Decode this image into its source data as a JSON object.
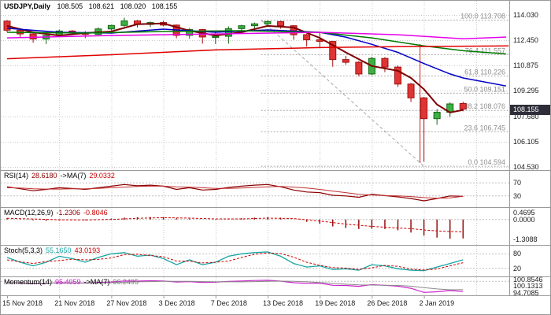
{
  "header": {
    "symbol_title": "USDJPY,Daily",
    "open": "108.505",
    "high": "108.621",
    "low": "108.020",
    "close": "108.155"
  },
  "price_axis": {
    "ticks": [
      "114.030",
      "112.450",
      "110.875",
      "109.295",
      "107.680",
      "106.105",
      "104.530"
    ],
    "tick_values": [
      114.03,
      112.45,
      110.875,
      109.295,
      107.68,
      106.105,
      104.53
    ],
    "current_price": "108.155",
    "current_price_value": 108.155
  },
  "time_axis": {
    "labels": [
      "15 Nov 2018",
      "21 Nov 2018",
      "27 Nov 2018",
      "3 Dec 2018",
      "7 Dec 2018",
      "13 Dec 2018",
      "19 Dec 2018",
      "26 Dec 2018",
      "2 Jan 2019"
    ],
    "label_indices": [
      0,
      4,
      8,
      12,
      16,
      20,
      24,
      28,
      32
    ]
  },
  "colors": {
    "background": "#FFFFFF",
    "grid": "#C9C9C9",
    "separator": "#9A9A9A",
    "candle_up_fill": "#3CB043",
    "candle_up_border": "#156615",
    "candle_down_fill": "#E03535",
    "candle_down_border": "#A01010",
    "badge_bg": "#2E2E3A",
    "badge_text": "#FFFFFF",
    "fib_line": "#A8A8A8",
    "fib_text": "#8E8E8E"
  },
  "chart_data": {
    "type": "candlestick",
    "symbol": "USDJPY",
    "timeframe": "Daily",
    "ylim": [
      104.45,
      114.72
    ],
    "candles": [
      {
        "d": "15 Nov",
        "o": 113.65,
        "h": 113.72,
        "l": 112.95,
        "c": 113.08
      },
      {
        "d": "16 Nov",
        "o": 113.08,
        "h": 113.18,
        "l": 112.62,
        "c": 112.85
      },
      {
        "d": "19 Nov",
        "o": 112.85,
        "h": 112.9,
        "l": 112.3,
        "c": 112.53
      },
      {
        "d": "20 Nov",
        "o": 112.53,
        "h": 112.8,
        "l": 112.22,
        "c": 112.75
      },
      {
        "d": "21 Nov",
        "o": 112.75,
        "h": 113.12,
        "l": 112.7,
        "c": 113.03
      },
      {
        "d": "22 Nov",
        "o": 113.03,
        "h": 113.1,
        "l": 112.83,
        "c": 112.93
      },
      {
        "d": "23 Nov",
        "o": 112.93,
        "h": 113.02,
        "l": 112.58,
        "c": 112.82
      },
      {
        "d": "26 Nov",
        "o": 112.82,
        "h": 113.26,
        "l": 112.78,
        "c": 113.16
      },
      {
        "d": "27 Nov",
        "o": 113.16,
        "h": 113.42,
        "l": 113.06,
        "c": 113.38
      },
      {
        "d": "28 Nov",
        "o": 113.38,
        "h": 113.86,
        "l": 113.3,
        "c": 113.66
      },
      {
        "d": "29 Nov",
        "o": 113.66,
        "h": 113.72,
        "l": 113.26,
        "c": 113.44
      },
      {
        "d": "30 Nov",
        "o": 113.44,
        "h": 113.62,
        "l": 113.28,
        "c": 113.56
      },
      {
        "d": "3 Dec",
        "o": 113.56,
        "h": 113.67,
        "l": 113.32,
        "c": 113.4
      },
      {
        "d": "4 Dec",
        "o": 113.4,
        "h": 113.44,
        "l": 112.58,
        "c": 112.76
      },
      {
        "d": "5 Dec",
        "o": 112.76,
        "h": 113.22,
        "l": 112.55,
        "c": 113.12
      },
      {
        "d": "6 Dec",
        "o": 113.12,
        "h": 113.16,
        "l": 112.24,
        "c": 112.66
      },
      {
        "d": "7 Dec",
        "o": 112.66,
        "h": 113.02,
        "l": 112.22,
        "c": 112.7
      },
      {
        "d": "10 Dec",
        "o": 112.7,
        "h": 113.32,
        "l": 112.24,
        "c": 113.18
      },
      {
        "d": "11 Dec",
        "o": 113.18,
        "h": 113.42,
        "l": 112.96,
        "c": 113.36
      },
      {
        "d": "12 Dec",
        "o": 113.36,
        "h": 113.56,
        "l": 113.12,
        "c": 113.48
      },
      {
        "d": "13 Dec",
        "o": 113.48,
        "h": 113.7,
        "l": 113.36,
        "c": 113.62
      },
      {
        "d": "14 Dec",
        "o": 113.62,
        "h": 113.66,
        "l": 113.18,
        "c": 113.36
      },
      {
        "d": "17 Dec",
        "o": 113.36,
        "h": 113.4,
        "l": 112.48,
        "c": 112.8
      },
      {
        "d": "18 Dec",
        "o": 112.8,
        "h": 112.86,
        "l": 112.06,
        "c": 112.48
      },
      {
        "d": "19 Dec",
        "o": 112.48,
        "h": 112.98,
        "l": 111.98,
        "c": 112.38
      },
      {
        "d": "20 Dec",
        "o": 112.38,
        "h": 112.42,
        "l": 110.8,
        "c": 111.25
      },
      {
        "d": "21 Dec",
        "o": 111.25,
        "h": 111.48,
        "l": 110.92,
        "c": 111.08
      },
      {
        "d": "24 Dec",
        "o": 111.08,
        "h": 111.15,
        "l": 110.2,
        "c": 110.35
      },
      {
        "d": "26 Dec",
        "o": 110.35,
        "h": 111.42,
        "l": 110.28,
        "c": 111.32
      },
      {
        "d": "27 Dec",
        "o": 111.32,
        "h": 111.4,
        "l": 110.46,
        "c": 110.78
      },
      {
        "d": "28 Dec",
        "o": 110.78,
        "h": 110.88,
        "l": 109.55,
        "c": 109.72
      },
      {
        "d": "31 Dec",
        "o": 109.72,
        "h": 109.8,
        "l": 108.6,
        "c": 108.86
      },
      {
        "d": "2 Jan",
        "o": 108.86,
        "h": 108.92,
        "l": 104.87,
        "c": 107.56
      },
      {
        "d": "3 Jan",
        "o": 107.56,
        "h": 108.16,
        "l": 107.18,
        "c": 107.96
      },
      {
        "d": "4 Jan",
        "o": 107.96,
        "h": 108.58,
        "l": 107.66,
        "c": 108.48
      },
      {
        "d": "7 Jan",
        "o": 108.505,
        "h": 108.621,
        "l": 108.02,
        "c": 108.155
      }
    ],
    "moving_averages": [
      {
        "name": "fast-maroon",
        "color": "#7D0000",
        "width": 2,
        "points": [
          [
            0,
            113.35
          ],
          [
            2,
            112.95
          ],
          [
            4,
            112.75
          ],
          [
            6,
            112.9
          ],
          [
            8,
            113.0
          ],
          [
            10,
            113.45
          ],
          [
            12,
            113.5
          ],
          [
            14,
            113.05
          ],
          [
            16,
            112.75
          ],
          [
            18,
            112.95
          ],
          [
            20,
            113.35
          ],
          [
            22,
            113.25
          ],
          [
            24,
            112.6
          ],
          [
            26,
            111.7
          ],
          [
            28,
            110.85
          ],
          [
            30,
            110.55
          ],
          [
            31,
            110.1
          ],
          [
            32,
            109.4
          ],
          [
            33,
            108.45
          ],
          [
            34,
            107.95
          ],
          [
            35,
            108.1
          ]
        ]
      },
      {
        "name": "medium-blue",
        "color": "#0000C8",
        "width": 1.5,
        "points": [
          [
            0,
            113.2
          ],
          [
            4,
            112.95
          ],
          [
            8,
            112.9
          ],
          [
            12,
            113.15
          ],
          [
            16,
            112.95
          ],
          [
            20,
            113.1
          ],
          [
            24,
            112.95
          ],
          [
            26,
            112.65
          ],
          [
            28,
            112.2
          ],
          [
            30,
            111.7
          ],
          [
            32,
            111.0
          ],
          [
            34,
            110.35
          ],
          [
            35,
            110.1
          ],
          [
            38.3,
            109.6
          ]
        ]
      },
      {
        "name": "slow-green",
        "color": "#007A00",
        "width": 1.5,
        "points": [
          [
            0,
            112.95
          ],
          [
            6,
            112.9
          ],
          [
            12,
            113.0
          ],
          [
            18,
            113.05
          ],
          [
            24,
            112.95
          ],
          [
            28,
            112.6
          ],
          [
            32,
            112.1
          ],
          [
            35,
            111.8
          ],
          [
            38.3,
            111.6
          ]
        ]
      },
      {
        "name": "slower-magenta",
        "color": "#E800E8",
        "width": 1.5,
        "points": [
          [
            0,
            112.6
          ],
          [
            8,
            112.75
          ],
          [
            16,
            112.85
          ],
          [
            24,
            112.95
          ],
          [
            30,
            112.8
          ],
          [
            35,
            112.55
          ],
          [
            38.3,
            112.65
          ]
        ]
      },
      {
        "name": "long-red",
        "color": "#E00000",
        "width": 1.5,
        "points": [
          [
            0,
            111.3
          ],
          [
            8,
            111.55
          ],
          [
            16,
            111.85
          ],
          [
            24,
            112.0
          ],
          [
            30,
            112.05
          ],
          [
            38.5,
            112.1
          ]
        ]
      }
    ],
    "fibonacci": {
      "start_index": 19.5,
      "levels": [
        {
          "label": "100.0 113.708",
          "price": 113.708
        },
        {
          "label": "76.4 111.557",
          "price": 111.557
        },
        {
          "label": "61.8 110.226",
          "price": 110.226
        },
        {
          "label": "50.0 109.151",
          "price": 109.151
        },
        {
          "label": "38.2 108.076",
          "price": 108.076
        },
        {
          "label": "23.6 106.745",
          "price": 106.745
        },
        {
          "label": "0.0 104.594",
          "price": 104.594
        }
      ],
      "trendline": {
        "from_index": 19.5,
        "from_price": 113.708,
        "to_index": 32.0,
        "to_price": 104.594
      }
    },
    "vline": {
      "index": 31.7,
      "color": "#CC2222"
    },
    "indicators": {
      "rsi": {
        "title": "RSI(14)",
        "value": "28.6180",
        "ma_title": "->MA(7)",
        "ma_value": "29.0332",
        "color": "#8B0000",
        "ma_color": "#C03030",
        "levels": [
          70,
          30
        ],
        "axis_labels": [
          {
            "text": "70",
            "value": 70
          },
          {
            "text": "30",
            "value": 30
          }
        ],
        "series": [
          58,
          52,
          46,
          50,
          55,
          53,
          50,
          55,
          60,
          65,
          61,
          63,
          60,
          50,
          55,
          48,
          50,
          56,
          60,
          63,
          65,
          58,
          48,
          42,
          40,
          32,
          30,
          26,
          35,
          31,
          27,
          22,
          15,
          22,
          30,
          28.618
        ],
        "ma_series": [
          55,
          54,
          52,
          51,
          51,
          52,
          52,
          53,
          55,
          57,
          59,
          60,
          60,
          58,
          57,
          55,
          53,
          53,
          54,
          56,
          58,
          59,
          57,
          54,
          50,
          45,
          40,
          35,
          33,
          31,
          30,
          28,
          25,
          23,
          24,
          29.0332
        ]
      },
      "macd": {
        "title": "MACD(12,26,9)",
        "value": "-1.2306",
        "signal_value": "-0.8046",
        "hist_color": "#8B0000",
        "signal_color": "#CC0000",
        "levels": [
          0
        ],
        "axis_labels": [
          {
            "text": "0.4695",
            "value": 0.4695
          },
          {
            "text": "0.0000",
            "value": 0
          },
          {
            "text": "-1.3088",
            "value": -1.3088
          }
        ],
        "histogram": [
          0.1,
          0.02,
          -0.05,
          -0.08,
          -0.05,
          -0.02,
          -0.05,
          0.0,
          0.06,
          0.12,
          0.15,
          0.16,
          0.15,
          0.08,
          0.05,
          0.0,
          -0.02,
          0.02,
          0.08,
          0.12,
          0.15,
          0.12,
          0.0,
          -0.15,
          -0.28,
          -0.45,
          -0.55,
          -0.62,
          -0.6,
          -0.62,
          -0.7,
          -0.85,
          -1.05,
          -1.18,
          -1.25,
          -1.2306
        ],
        "signal": [
          0.08,
          0.055,
          0.03,
          0.005,
          -0.02,
          -0.025,
          -0.03,
          -0.015,
          0.0,
          0.04,
          0.08,
          0.1,
          0.12,
          0.105,
          0.09,
          0.065,
          0.04,
          0.04,
          0.04,
          0.065,
          0.09,
          0.075,
          0.06,
          -0.02,
          -0.1,
          -0.2,
          -0.3,
          -0.375,
          -0.45,
          -0.5,
          -0.55,
          -0.6,
          -0.68,
          -0.74,
          -0.78,
          -0.8046
        ]
      },
      "stoch": {
        "title": "Stoch(5,3,3)",
        "value": "55.1650",
        "signal_value": "43.0193",
        "color": "#18A5A5",
        "signal_color": "#CC0000",
        "levels": [
          80,
          20
        ],
        "axis_labels": [
          {
            "text": "80",
            "value": 80
          },
          {
            "text": "20",
            "value": 20
          }
        ],
        "series": [
          65,
          45,
          30,
          45,
          70,
          60,
          45,
          65,
          80,
          85,
          70,
          75,
          60,
          35,
          55,
          35,
          45,
          70,
          80,
          85,
          88,
          70,
          40,
          25,
          30,
          15,
          18,
          12,
          35,
          30,
          18,
          12,
          10,
          25,
          40,
          55.165
        ],
        "signal": [
          55,
          47,
          40,
          48,
          52,
          58,
          55,
          57,
          63,
          77,
          78,
          73,
          68,
          50,
          50,
          42,
          45,
          50,
          65,
          78,
          84,
          81,
          66,
          45,
          32,
          23,
          21,
          15,
          22,
          32,
          28,
          16,
          13,
          17,
          30,
          43.0193
        ]
      },
      "momentum": {
        "title": "Momentum(14)",
        "value": "95.4059",
        "ma_title": "->MA(7)",
        "ma_value": "96.2495",
        "color": "#CC22CC",
        "ma_color": "#8a8a8a",
        "levels": [
          100.1313
        ],
        "axis_labels": [
          {
            "text": "100.8546",
            "value": 100.8546
          },
          {
            "text": "100.1313",
            "value": 100.1313
          },
          {
            "text": "94.7085",
            "value": 94.7085
          }
        ],
        "series": [
          99.6,
          99.3,
          99.0,
          99.2,
          99.5,
          99.4,
          99.3,
          99.6,
          99.8,
          100.3,
          100.2,
          100.4,
          100.3,
          99.8,
          100.0,
          99.6,
          99.7,
          100.1,
          100.3,
          100.5,
          100.6,
          100.2,
          99.5,
          99.2,
          99.3,
          98.3,
          98.2,
          97.8,
          98.6,
          98.3,
          97.9,
          96.9,
          95.0,
          95.3,
          95.9,
          95.4059
        ],
        "ma_series": [
          99.5,
          99.4,
          99.3,
          99.3,
          99.3,
          99.3,
          99.4,
          99.4,
          99.5,
          99.7,
          99.9,
          100.0,
          100.1,
          100.1,
          100.1,
          100.0,
          99.9,
          99.9,
          99.9,
          100.0,
          100.1,
          100.2,
          100.1,
          99.9,
          99.6,
          99.2,
          98.8,
          98.5,
          98.4,
          98.3,
          98.2,
          97.9,
          97.2,
          96.6,
          96.2,
          96.2495
        ]
      }
    }
  }
}
